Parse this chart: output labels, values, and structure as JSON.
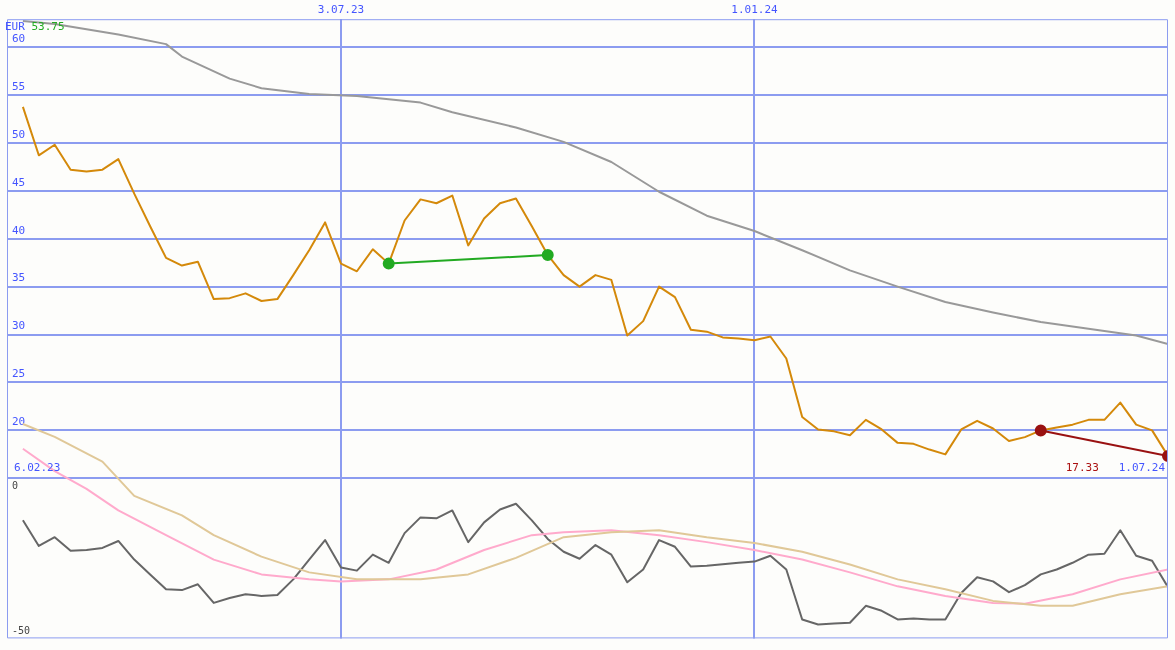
{
  "chart_data": {
    "type": "line",
    "x": [
      "2023-02-13",
      "2023-02-20",
      "2023-02-27",
      "2023-03-06",
      "2023-03-13",
      "2023-03-20",
      "2023-03-27",
      "2023-04-03",
      "2023-04-10",
      "2023-04-17",
      "2023-04-24",
      "2023-05-01",
      "2023-05-08",
      "2023-05-15",
      "2023-05-22",
      "2023-05-29",
      "2023-06-05",
      "2023-06-12",
      "2023-06-19",
      "2023-06-26",
      "2023-07-03",
      "2023-07-10",
      "2023-07-17",
      "2023-07-24",
      "2023-07-31",
      "2023-08-07",
      "2023-08-14",
      "2023-08-21",
      "2023-08-28",
      "2023-09-04",
      "2023-09-11",
      "2023-09-18",
      "2023-09-25",
      "2023-10-02",
      "2023-10-09",
      "2023-10-16",
      "2023-10-23",
      "2023-10-30",
      "2023-11-06",
      "2023-11-13",
      "2023-11-20",
      "2023-11-27",
      "2023-12-04",
      "2023-12-11",
      "2023-12-18",
      "2023-12-25",
      "2024-01-01",
      "2024-01-08",
      "2024-01-15",
      "2024-01-22",
      "2024-01-29",
      "2024-02-05",
      "2024-02-12",
      "2024-02-19",
      "2024-02-26",
      "2024-03-04",
      "2024-03-11",
      "2024-03-18",
      "2024-03-25",
      "2024-04-01",
      "2024-04-08",
      "2024-04-15",
      "2024-04-22",
      "2024-04-29",
      "2024-05-06",
      "2024-05-13",
      "2024-05-20",
      "2024-05-27",
      "2024-06-03",
      "2024-06-10",
      "2024-06-17",
      "2024-06-24",
      "2024-07-01"
    ],
    "series": [
      {
        "color": "#d4890a",
        "values": [
          53.75,
          48.7,
          49.8,
          47.2,
          47.0,
          47.2,
          48.3,
          44.7,
          41.3,
          38.0,
          37.2,
          37.6,
          33.7,
          33.8,
          34.3,
          33.5,
          33.7,
          36.2,
          38.8,
          41.7,
          37.4,
          36.6,
          38.9,
          37.4,
          41.9,
          44.1,
          43.7,
          44.5,
          39.3,
          42.1,
          43.7,
          44.2,
          41.3,
          38.3,
          36.2,
          35.0,
          36.2,
          35.7,
          29.9,
          31.4,
          35.0,
          33.9,
          30.5,
          30.3,
          29.7,
          29.6,
          29.4,
          29.8,
          27.5,
          21.4,
          20.1,
          19.9,
          19.5,
          21.1,
          20.1,
          18.7,
          18.6,
          18.0,
          17.5,
          20.1,
          21.0,
          20.2,
          18.9,
          19.3,
          20.0,
          20.3,
          20.6,
          21.1,
          21.1,
          22.9,
          20.6,
          20.0,
          17.33
        ]
      },
      {
        "color": "#999999",
        "x": [
          "2023-02-13",
          "2023-02-27",
          "2023-03-27",
          "2023-04-17",
          "2023-04-24",
          "2023-05-15",
          "2023-05-29",
          "2023-06-19",
          "2023-07-10",
          "2023-08-07",
          "2023-08-21",
          "2023-09-18",
          "2023-10-09",
          "2023-10-30",
          "2023-11-20",
          "2023-12-11",
          "2024-01-01",
          "2024-01-22",
          "2024-02-12",
          "2024-03-04",
          "2024-03-25",
          "2024-04-15",
          "2024-05-06",
          "2024-05-27",
          "2024-06-17",
          "2024-07-01"
        ],
        "values": [
          62.7,
          62.4,
          61.3,
          60.3,
          59.0,
          56.7,
          55.7,
          55.1,
          54.9,
          54.2,
          53.2,
          51.6,
          50.1,
          48.0,
          44.9,
          42.4,
          40.8,
          38.8,
          36.7,
          35.0,
          33.4,
          32.3,
          31.3,
          30.6,
          29.9,
          29.0
        ]
      },
      {
        "color": "#22aa22",
        "marker": "circle",
        "x": [
          "2023-07-24",
          "2023-10-02"
        ],
        "values": [
          37.4,
          38.3
        ]
      },
      {
        "color": "#991111",
        "marker": "circle",
        "x": [
          "2024-05-06",
          "2024-07-01"
        ],
        "values": [
          20.0,
          17.33
        ]
      },
      {
        "color": "#666666",
        "axis": "y2",
        "values": [
          -11.8,
          -20.6,
          -17.6,
          -22.3,
          -22.0,
          -21.3,
          -18.9,
          -25.3,
          -30.4,
          -35.5,
          -35.8,
          -33.8,
          -40.2,
          -38.5,
          -37.2,
          -37.8,
          -37.5,
          -32.1,
          -25.3,
          -18.6,
          -28.0,
          -29.1,
          -23.6,
          -26.4,
          -16.2,
          -10.8,
          -11.1,
          -8.4,
          -19.3,
          -12.5,
          -8.1,
          -6.1,
          -11.8,
          -18.2,
          -22.6,
          -25.0,
          -20.3,
          -23.6,
          -33.1,
          -28.7,
          -18.6,
          -20.9,
          -27.7,
          -27.4,
          -26.9,
          -26.4,
          -26.0,
          -24.0,
          -28.7,
          -45.9,
          -47.6,
          -47.3,
          -47.0,
          -41.2,
          -42.9,
          -45.9,
          -45.6,
          -45.9,
          -45.9,
          -36.8,
          -31.4,
          -32.8,
          -36.5,
          -34.1,
          -30.4,
          -28.7,
          -26.4,
          -23.6,
          -23.3,
          -15.2,
          -24.0,
          -25.7,
          -34.8
        ]
      },
      {
        "color": "#ffaacc",
        "axis": "y2",
        "x": [
          "2023-02-13",
          "2023-02-27",
          "2023-03-13",
          "2023-03-27",
          "2023-04-17",
          "2023-05-08",
          "2023-05-29",
          "2023-06-19",
          "2023-07-03",
          "2023-07-24",
          "2023-08-14",
          "2023-09-04",
          "2023-09-25",
          "2023-10-09",
          "2023-10-30",
          "2023-11-20",
          "2023-12-11",
          "2024-01-01",
          "2024-01-22",
          "2024-02-12",
          "2024-03-04",
          "2024-03-25",
          "2024-04-15",
          "2024-04-29",
          "2024-05-20",
          "2024-06-10",
          "2024-07-01"
        ],
        "values": [
          12.8,
          5.1,
          -1.0,
          -8.4,
          -16.9,
          -25.3,
          -30.4,
          -32.1,
          -32.8,
          -32.1,
          -28.7,
          -22.0,
          -16.9,
          -15.9,
          -15.2,
          -16.9,
          -19.3,
          -22.0,
          -25.3,
          -29.7,
          -34.5,
          -37.8,
          -40.2,
          -40.5,
          -37.2,
          -32.1,
          -28.7
        ]
      },
      {
        "color": "#e0c898",
        "axis": "y2",
        "x": [
          "2023-02-13",
          "2023-02-27",
          "2023-03-20",
          "2023-04-03",
          "2023-04-24",
          "2023-05-08",
          "2023-05-29",
          "2023-06-19",
          "2023-07-10",
          "2023-08-07",
          "2023-08-28",
          "2023-09-18",
          "2023-10-09",
          "2023-10-30",
          "2023-11-20",
          "2023-12-11",
          "2024-01-01",
          "2024-01-22",
          "2024-02-12",
          "2024-03-04",
          "2024-03-25",
          "2024-04-15",
          "2024-05-06",
          "2024-05-20",
          "2024-06-10",
          "2024-07-01"
        ],
        "values": [
          21.3,
          16.9,
          8.4,
          -3.4,
          -10.1,
          -16.9,
          -24.3,
          -29.7,
          -32.1,
          -32.1,
          -30.4,
          -24.7,
          -17.6,
          -15.9,
          -15.2,
          -17.6,
          -19.6,
          -22.6,
          -27.0,
          -32.1,
          -35.5,
          -39.5,
          -41.2,
          -41.2,
          -37.2,
          -34.5
        ]
      }
    ],
    "xlim": [
      "2023-02-06",
      "2024-07-01"
    ],
    "xticks": [
      {
        "value": "2023-07-03",
        "label": "3.07.23"
      },
      {
        "value": "2024-01-01",
        "label": "1.01.24"
      }
    ],
    "ylim": [
      -1.7,
      62.9
    ],
    "yticks": [
      {
        "value": 15,
        "label": null
      },
      20,
      25,
      30,
      35,
      40,
      45,
      50,
      55,
      60
    ],
    "y2lim": [
      -52.4,
      160.5
    ],
    "y2ticks": [
      0,
      -50
    ],
    "grid": true,
    "legend": false,
    "marker": "none",
    "line_style": "solid",
    "annotations": [
      "EUR",
      "53.75",
      "6.02.23",
      "17.33",
      "1.07.24"
    ]
  }
}
